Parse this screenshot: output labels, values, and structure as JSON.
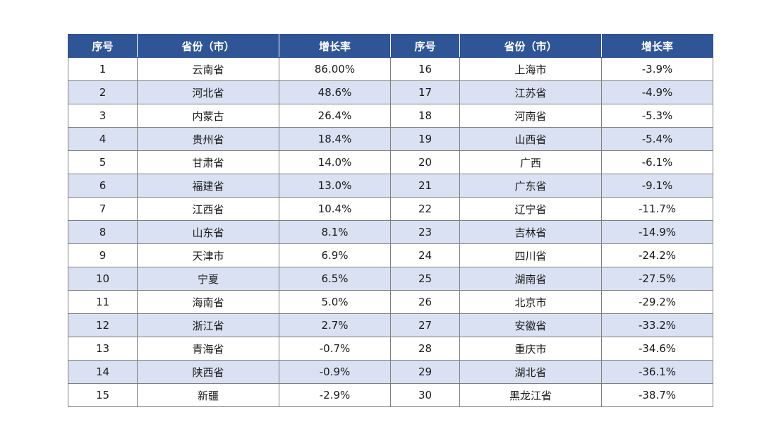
{
  "table": {
    "headers": [
      "序号",
      "省份（市）",
      "增长率",
      "序号",
      "省份（市）",
      "增长率"
    ],
    "rows": [
      [
        {
          "idx": "1",
          "province": "云南省",
          "rate": "86.00%"
        },
        {
          "idx": "16",
          "province": "上海市",
          "rate": "-3.9%"
        }
      ],
      [
        {
          "idx": "2",
          "province": "河北省",
          "rate": "48.6%"
        },
        {
          "idx": "17",
          "province": "江苏省",
          "rate": "-4.9%"
        }
      ],
      [
        {
          "idx": "3",
          "province": "内蒙古",
          "rate": "26.4%"
        },
        {
          "idx": "18",
          "province": "河南省",
          "rate": "-5.3%"
        }
      ],
      [
        {
          "idx": "4",
          "province": "贵州省",
          "rate": "18.4%"
        },
        {
          "idx": "19",
          "province": "山西省",
          "rate": "-5.4%"
        }
      ],
      [
        {
          "idx": "5",
          "province": "甘肃省",
          "rate": "14.0%"
        },
        {
          "idx": "20",
          "province": "广西",
          "rate": "-6.1%"
        }
      ],
      [
        {
          "idx": "6",
          "province": "福建省",
          "rate": "13.0%"
        },
        {
          "idx": "21",
          "province": "广东省",
          "rate": "-9.1%"
        }
      ],
      [
        {
          "idx": "7",
          "province": "江西省",
          "rate": "10.4%"
        },
        {
          "idx": "22",
          "province": "辽宁省",
          "rate": "-11.7%"
        }
      ],
      [
        {
          "idx": "8",
          "province": "山东省",
          "rate": "8.1%"
        },
        {
          "idx": "23",
          "province": "吉林省",
          "rate": "-14.9%"
        }
      ],
      [
        {
          "idx": "9",
          "province": "天津市",
          "rate": "6.9%"
        },
        {
          "idx": "24",
          "province": "四川省",
          "rate": "-24.2%"
        }
      ],
      [
        {
          "idx": "10",
          "province": "宁夏",
          "rate": "6.5%"
        },
        {
          "idx": "25",
          "province": "湖南省",
          "rate": "-27.5%"
        }
      ],
      [
        {
          "idx": "11",
          "province": "海南省",
          "rate": "5.0%"
        },
        {
          "idx": "26",
          "province": "北京市",
          "rate": "-29.2%"
        }
      ],
      [
        {
          "idx": "12",
          "province": "浙江省",
          "rate": "2.7%"
        },
        {
          "idx": "27",
          "province": "安徽省",
          "rate": "-33.2%"
        }
      ],
      [
        {
          "idx": "13",
          "province": "青海省",
          "rate": "-0.7%"
        },
        {
          "idx": "28",
          "province": "重庆市",
          "rate": "-34.6%"
        }
      ],
      [
        {
          "idx": "14",
          "province": "陕西省",
          "rate": "-0.9%"
        },
        {
          "idx": "29",
          "province": "湖北省",
          "rate": "-36.1%"
        }
      ],
      [
        {
          "idx": "15",
          "province": "新疆",
          "rate": "-2.9%"
        },
        {
          "idx": "30",
          "province": "黑龙江省",
          "rate": "-38.7%"
        }
      ]
    ]
  },
  "colors": {
    "header_bg": "#2f5597",
    "header_text": "#ffffff",
    "stripe_bg": "#d9e1f2",
    "border": "#7f7f7f"
  }
}
